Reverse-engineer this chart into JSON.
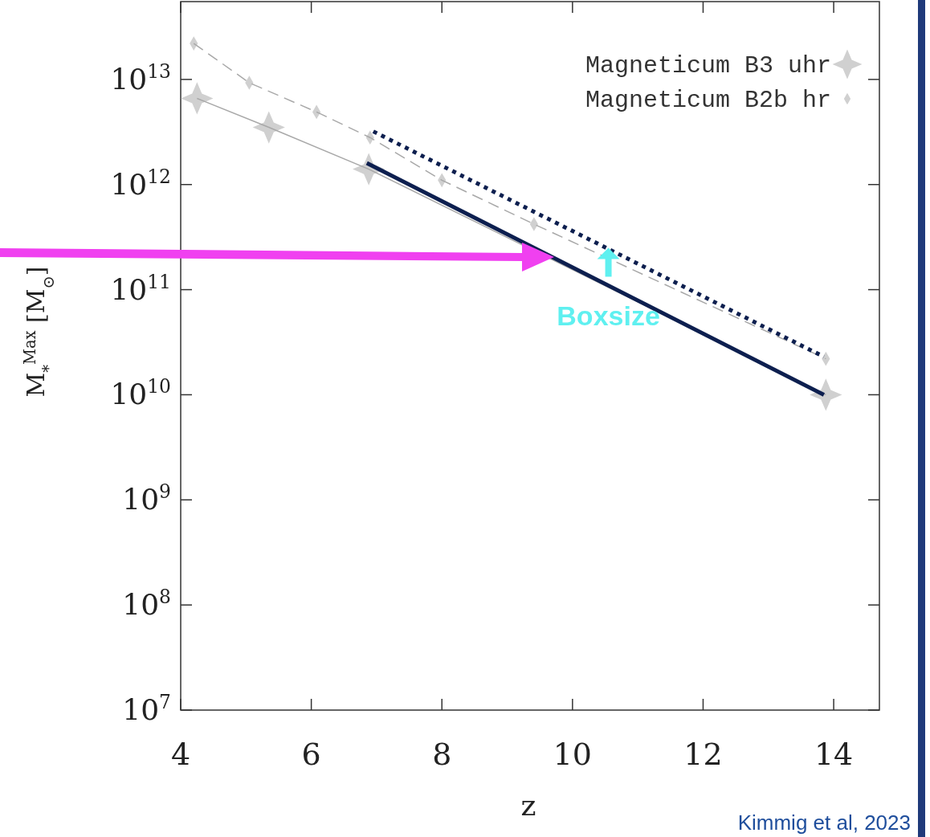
{
  "chart_data": {
    "type": "line",
    "xlabel": "z",
    "ylabel": "M$_{*}$$^{Max}$ [M$_{⊙}$]",
    "xlim": [
      4,
      14.7
    ],
    "xticks": [
      4,
      6,
      8,
      10,
      12,
      14
    ],
    "ylim": [
      10000000.0,
      55000000000000.0
    ],
    "yticks": [
      {
        "value": 10000000.0,
        "label": "10$^{7}$"
      },
      {
        "value": 100000000.0,
        "label": "10$^{8}$"
      },
      {
        "value": 1000000000.0,
        "label": "10$^{9}$"
      },
      {
        "value": 10000000000.0,
        "label": "10$^{10}$"
      },
      {
        "value": 100000000000.0,
        "label": "10$^{11}$"
      },
      {
        "value": 1000000000000.0,
        "label": "10$^{12}$"
      },
      {
        "value": 10000000000000.0,
        "label": "10$^{13}$"
      }
    ],
    "log": "y",
    "grid": false,
    "legend": "top right",
    "series": [
      {
        "name": "Magneticum B3 uhr",
        "color": "#d0d0d0",
        "marker": "star",
        "line_style": "solid",
        "x": [
          4.25,
          5.35,
          6.88,
          13.88
        ],
        "values": [
          6600000000000.0,
          3500000000000.0,
          1400000000000.0,
          10000000000.0
        ]
      },
      {
        "name": "Magneticum B2b hr",
        "color": "#d0d0d0",
        "marker": "diamond",
        "line_style": "dashed",
        "x": [
          4.2,
          5.05,
          6.08,
          6.9,
          8.0,
          9.41,
          13.88
        ],
        "values": [
          22000000000000.0,
          9300000000000.0,
          4900000000000.0,
          2800000000000.0,
          1100000000000.0,
          420000000000.0,
          22000000000.0
        ]
      },
      {
        "color": "#0d1f4f",
        "marker": "none",
        "line_style": "solid",
        "x": [
          6.85,
          13.85
        ],
        "values": [
          1600000000000.0,
          10000000000.0
        ]
      },
      {
        "color": "#0d1f4f",
        "marker": "none",
        "line_style": "dotted",
        "x": [
          6.95,
          13.85
        ],
        "values": [
          3200000000000.0,
          23000000000.0
        ]
      }
    ],
    "annotations": [
      {
        "text": "Boxsize",
        "x": 10.55,
        "y": 250000000000.0
      },
      "Kimmig et al, 2023"
    ]
  }
}
